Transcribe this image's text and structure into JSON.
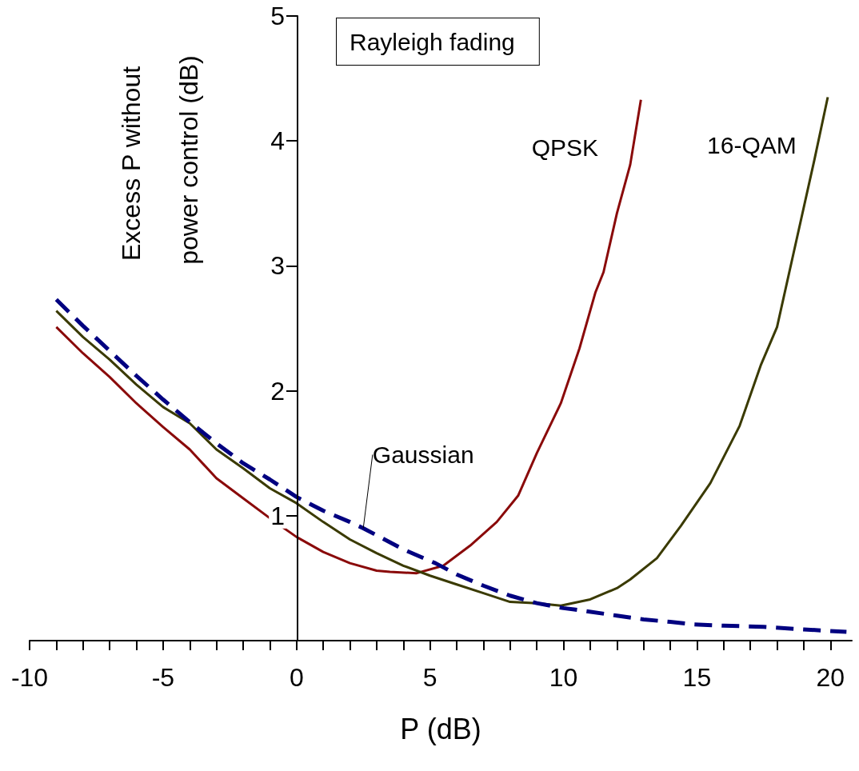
{
  "chart_data": {
    "type": "line",
    "xlabel": "P (dB)",
    "ylabel": "Excess P without power control (dB)",
    "annotations": [
      "Rayleigh fading"
    ],
    "xlim": [
      -10,
      20.8
    ],
    "xticks": [
      -10,
      {
        "value": -9,
        "label": null
      },
      {
        "value": -8,
        "label": null
      },
      {
        "value": -7,
        "label": null
      },
      {
        "value": -6,
        "label": null
      },
      -5,
      {
        "value": -4,
        "label": null
      },
      {
        "value": -3,
        "label": null
      },
      {
        "value": -2,
        "label": null
      },
      {
        "value": -1,
        "label": null
      },
      0,
      {
        "value": 1,
        "label": null
      },
      {
        "value": 2,
        "label": null
      },
      {
        "value": 3,
        "label": null
      },
      {
        "value": 4,
        "label": null
      },
      5,
      {
        "value": 6,
        "label": null
      },
      {
        "value": 7,
        "label": null
      },
      {
        "value": 8,
        "label": null
      },
      {
        "value": 9,
        "label": null
      },
      10,
      {
        "value": 11,
        "label": null
      },
      {
        "value": 12,
        "label": null
      },
      {
        "value": 13,
        "label": null
      },
      {
        "value": 14,
        "label": null
      },
      15,
      {
        "value": 16,
        "label": null
      },
      {
        "value": 17,
        "label": null
      },
      {
        "value": 18,
        "label": null
      },
      {
        "value": 19,
        "label": null
      },
      20
    ],
    "ylim": [
      0,
      5
    ],
    "yticks": [
      1,
      2,
      3,
      4,
      5
    ],
    "grid": false,
    "marker": "none",
    "series": [
      {
        "name": "QPSK",
        "color": "#8a0a0a",
        "line_style": "solid",
        "x": [
          -9,
          -8,
          -7,
          -6,
          -5,
          -4,
          -3,
          -2,
          -1,
          0,
          1,
          2,
          3,
          3.5,
          4.5,
          5.5,
          6.5,
          7.5,
          8.3,
          9,
          9.9,
          10.6,
          11.2,
          11.5,
          12,
          12.5,
          12.9
        ],
        "values": [
          2.51,
          2.3,
          2.11,
          1.9,
          1.71,
          1.53,
          1.3,
          1.14,
          0.98,
          0.83,
          0.71,
          0.62,
          0.56,
          0.55,
          0.54,
          0.6,
          0.76,
          0.95,
          1.16,
          1.5,
          1.9,
          2.34,
          2.79,
          2.95,
          3.42,
          3.81,
          4.33
        ]
      },
      {
        "name": "16-QAM",
        "color": "#3a3a00",
        "line_style": "solid",
        "x": [
          -9,
          -8,
          -7,
          -6,
          -5,
          -4,
          -3,
          -2,
          -1,
          0,
          1,
          2,
          3,
          4,
          5,
          6,
          7,
          8,
          9,
          9.9,
          11,
          12,
          12.5,
          13.5,
          14.4,
          15.5,
          16.6,
          17.4,
          18,
          18.7,
          19.4,
          19.9
        ],
        "values": [
          2.64,
          2.43,
          2.25,
          2.05,
          1.87,
          1.74,
          1.53,
          1.38,
          1.22,
          1.1,
          0.95,
          0.81,
          0.7,
          0.6,
          0.52,
          0.45,
          0.38,
          0.31,
          0.3,
          0.28,
          0.33,
          0.42,
          0.49,
          0.66,
          0.92,
          1.26,
          1.72,
          2.21,
          2.51,
          3.18,
          3.85,
          4.35
        ]
      },
      {
        "name": "Gaussian",
        "color": "#000080",
        "line_style": "dashed",
        "x": [
          -9,
          -8,
          -7,
          -6,
          -5,
          -4,
          -3,
          -2,
          -1,
          0,
          1,
          2,
          2.5,
          4,
          5.2,
          6,
          7,
          8,
          9,
          10,
          10.4,
          12,
          13,
          14,
          14.9,
          16,
          17.5,
          19,
          20.6
        ],
        "values": [
          2.73,
          2.52,
          2.32,
          2.12,
          1.93,
          1.75,
          1.58,
          1.42,
          1.29,
          1.15,
          1.04,
          0.95,
          0.9,
          0.73,
          0.62,
          0.53,
          0.44,
          0.36,
          0.3,
          0.26,
          0.25,
          0.2,
          0.17,
          0.15,
          0.13,
          0.12,
          0.11,
          0.09,
          0.07
        ]
      }
    ]
  }
}
